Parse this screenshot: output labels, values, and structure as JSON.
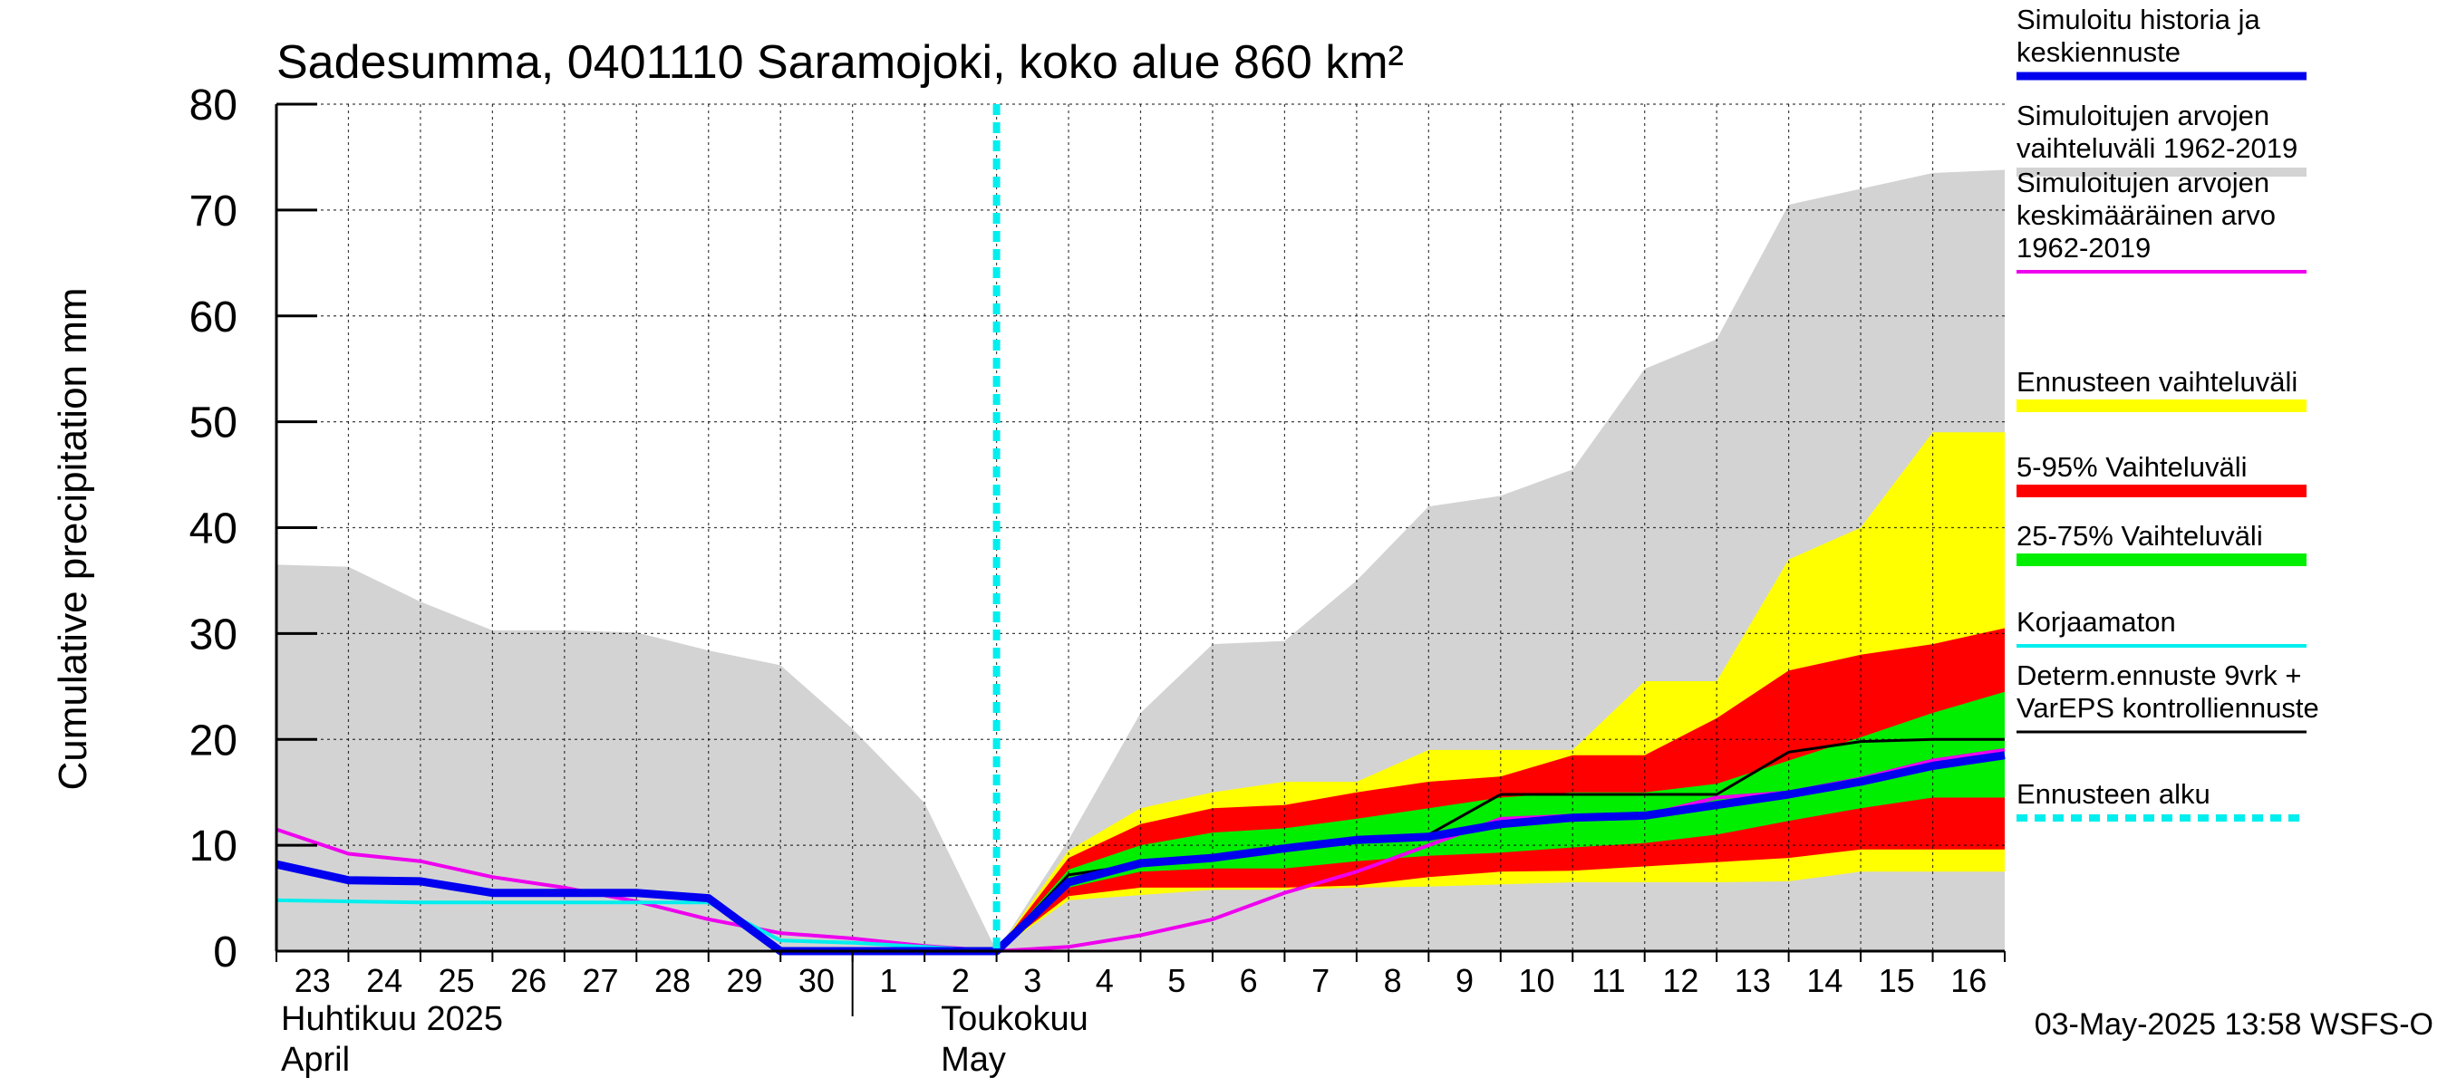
{
  "chart_data": {
    "type": "area",
    "title": "Sadesumma, 0401110 Saramojoki, koko alue 860 km²",
    "ylabel": "Cumulative precipitation   mm",
    "ylim": [
      0,
      80
    ],
    "y_ticks": [
      "0",
      "10",
      "20",
      "30",
      "40",
      "50",
      "60",
      "70",
      "80"
    ],
    "x_tick_labels": [
      "23",
      "24",
      "25",
      "26",
      "27",
      "28",
      "29",
      "30",
      "1",
      "2",
      "3",
      "4",
      "5",
      "6",
      "7",
      "8",
      "9",
      "10",
      "11",
      "12",
      "13",
      "14",
      "15",
      "16"
    ],
    "x_month_labels": [
      {
        "line1": "Huhtikuu  2025",
        "line2": "April"
      },
      {
        "line1": "Toukokuu",
        "line2": "May"
      }
    ],
    "forecast_start_day": 10,
    "colors": {
      "history": "#d3d3d3",
      "ens_range": "#ffff00",
      "p5_95": "#ff0000",
      "p25_75": "#00ee00",
      "sim_history": "#0000ee",
      "sim_mean": "#ee00ee",
      "uncorrected": "#00eeee",
      "determ": "#000000",
      "forecast_start": "#00eeee"
    },
    "series": {
      "history_upper": [
        36.5,
        36.3,
        33,
        30.3,
        30.3,
        30.1,
        28.4,
        27,
        21,
        14,
        0,
        10.5,
        22.5,
        29,
        29.3,
        35,
        42,
        43,
        45.5,
        55,
        57.8,
        70.5,
        72,
        73.5,
        73.8
      ],
      "history_lower": [
        0,
        0,
        0,
        0,
        0,
        0,
        0,
        0,
        0,
        0,
        0,
        0,
        0,
        0,
        0,
        0,
        0,
        0,
        0,
        0,
        0,
        0,
        0,
        0,
        0
      ],
      "ens_min": [
        null,
        null,
        null,
        null,
        null,
        null,
        null,
        null,
        null,
        null,
        0,
        4.8,
        5.3,
        5.8,
        5.8,
        6,
        6.1,
        6.3,
        6.5,
        6.5,
        6.5,
        6.6,
        7.5,
        7.5,
        7.5
      ],
      "ens_max": [
        null,
        null,
        null,
        null,
        null,
        null,
        null,
        null,
        null,
        null,
        0,
        9.5,
        13.5,
        15,
        16,
        16,
        19,
        19,
        19,
        25.5,
        25.5,
        37,
        40,
        49,
        49
      ],
      "p5": [
        null,
        null,
        null,
        null,
        null,
        null,
        null,
        null,
        null,
        null,
        0,
        5.2,
        6,
        6,
        6,
        6.2,
        7,
        7.5,
        7.6,
        8,
        8.4,
        8.8,
        9.6,
        9.6,
        9.6
      ],
      "p95": [
        null,
        null,
        null,
        null,
        null,
        null,
        null,
        null,
        null,
        null,
        0,
        8.8,
        12,
        13.5,
        13.8,
        15,
        16,
        16.5,
        18.5,
        18.5,
        22,
        26.5,
        28,
        29,
        30.5
      ],
      "p25": [
        null,
        null,
        null,
        null,
        null,
        null,
        null,
        null,
        null,
        null,
        0,
        6,
        7.5,
        7.8,
        7.8,
        8.5,
        9,
        9.3,
        9.8,
        10.2,
        11,
        12.3,
        13.5,
        14.5,
        14.5
      ],
      "p75": [
        null,
        null,
        null,
        null,
        null,
        null,
        null,
        null,
        null,
        null,
        0,
        7.7,
        10,
        11.2,
        11.6,
        12.5,
        13.5,
        14.5,
        15,
        15,
        15.8,
        18,
        20.2,
        22.5,
        24.5
      ],
      "sim_history": [
        8.2,
        6.7,
        6.6,
        5.5,
        5.5,
        5.5,
        5,
        0,
        0,
        0,
        0,
        6.5,
        8.3,
        8.8,
        9.7,
        10.5,
        10.8,
        12,
        12.6,
        12.8,
        13.8,
        14.8,
        16,
        17.5,
        18.5
      ],
      "sim_mean": [
        11.5,
        9.2,
        8.5,
        7,
        6,
        4.7,
        3,
        1.7,
        1.2,
        0.5,
        0,
        0.4,
        1.5,
        3,
        5.5,
        7.5,
        10,
        12.5,
        12.8,
        12.8,
        14.5,
        15,
        16.3,
        18,
        19
      ],
      "uncorrected": [
        4.8,
        4.7,
        4.6,
        4.6,
        4.6,
        4.6,
        4.6,
        1,
        0.8,
        0.4,
        0,
        6.5,
        8.3,
        8.8,
        9.7,
        10.5,
        10.8,
        12,
        12.6,
        12.8,
        13.8,
        14.8,
        16,
        17.5,
        18.5
      ],
      "determ": [
        null,
        null,
        null,
        null,
        null,
        null,
        null,
        null,
        null,
        null,
        0,
        7.2,
        8.2,
        8.6,
        9.5,
        10.5,
        11,
        14.8,
        14.8,
        14.8,
        14.8,
        18.8,
        19.8,
        20,
        20
      ]
    },
    "legend": [
      {
        "key": "sim_history",
        "label": "Simuloitu historia ja\nkeskiennuste"
      },
      {
        "key": "history",
        "label": "Simuloitujen arvojen\nvaihteluväli 1962-2019"
      },
      {
        "key": "sim_mean",
        "label": "Simuloitujen arvojen\nkeskimääräinen arvo\n   1962-2019"
      },
      {
        "key": "ens_range",
        "label": "Ennusteen vaihteluväli"
      },
      {
        "key": "p5_95",
        "label": "5-95% Vaihteluväli"
      },
      {
        "key": "p25_75",
        "label": "25-75% Vaihteluväli"
      },
      {
        "key": "uncorrected",
        "label": "Korjaamaton"
      },
      {
        "key": "determ",
        "label": "Determ.ennuste 9vrk +\nVarEPS kontrolliennuste"
      },
      {
        "key": "forecast_start",
        "label": "Ennusteen alku"
      }
    ],
    "footer": "03-May-2025 13:58 WSFS-O"
  }
}
